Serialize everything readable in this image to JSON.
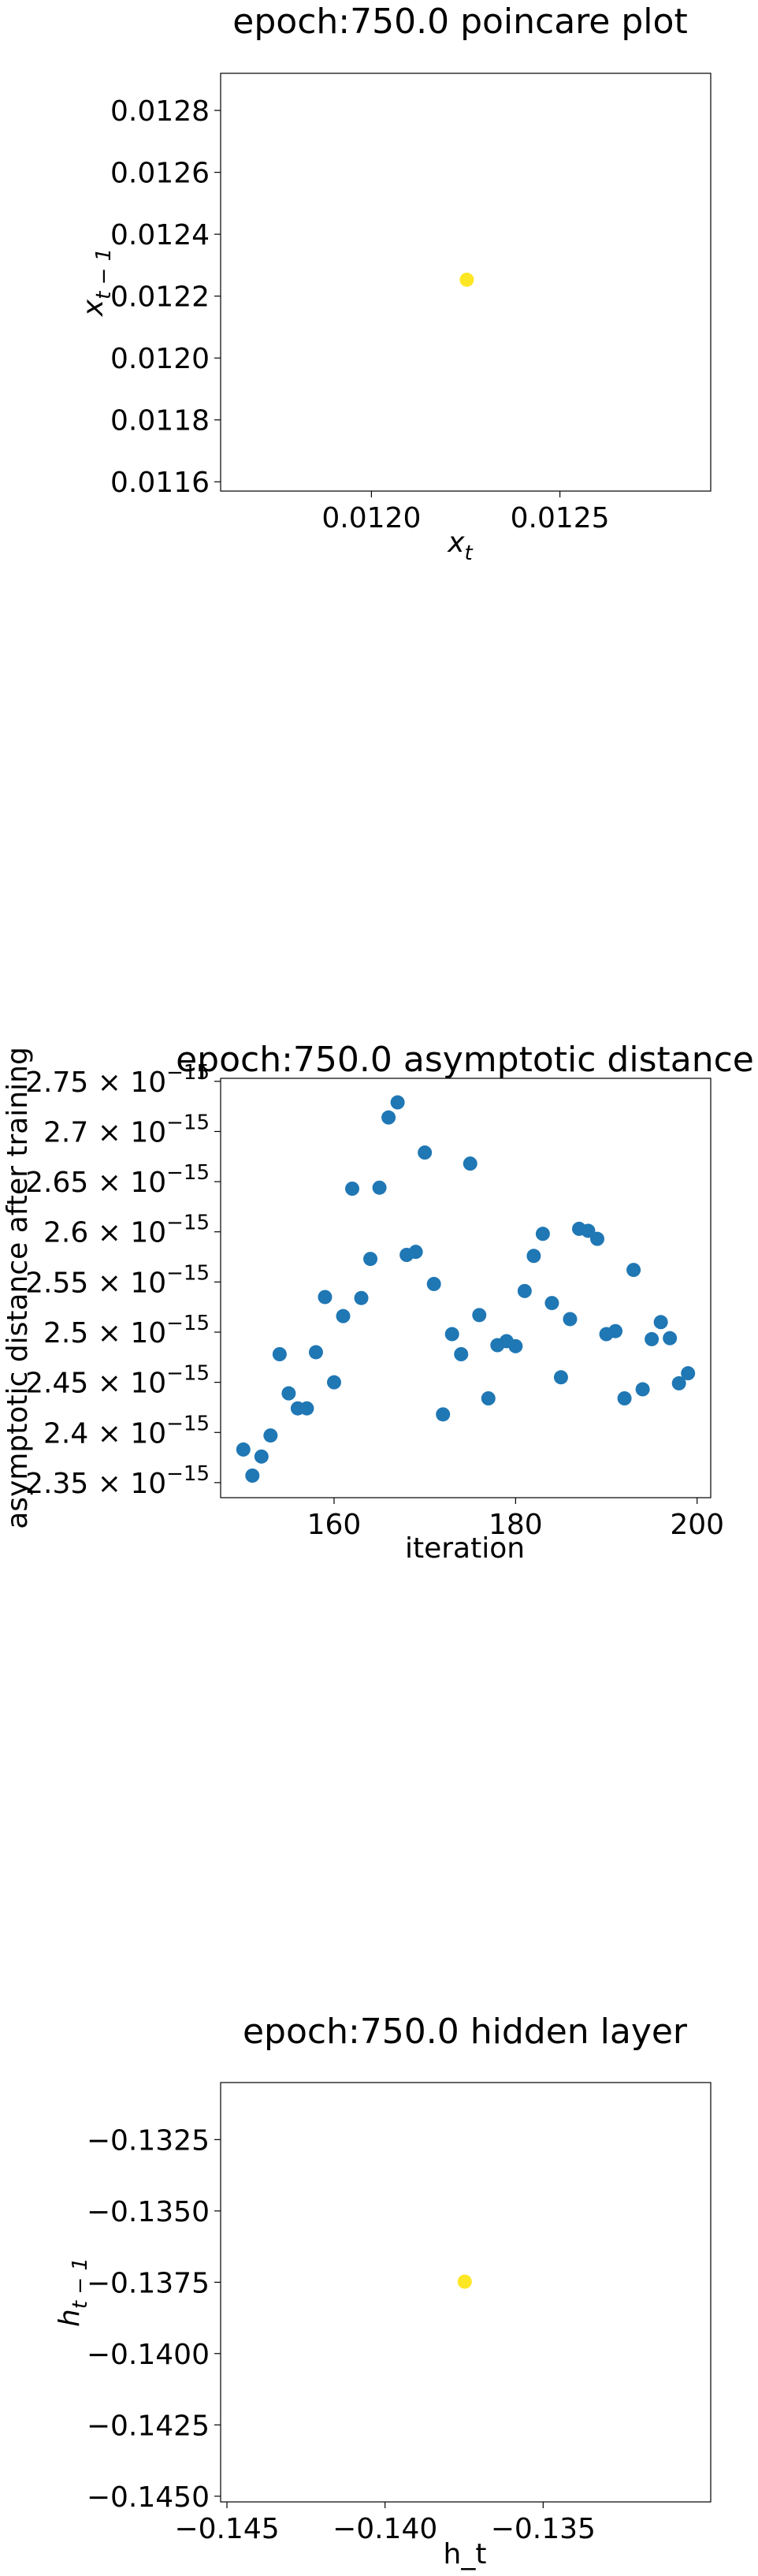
{
  "chart_data": [
    {
      "type": "scatter",
      "title": "epoch:750.0 poincare plot",
      "xlabel": "x",
      "xlabel_sub": "t",
      "ylabel": "x",
      "ylabel_sub": "t − 1",
      "xlim": [
        0.0116,
        0.0129
      ],
      "ylim": [
        0.01157,
        0.01292
      ],
      "xticks": [
        0.012,
        0.0125
      ],
      "xtick_labels": [
        "0.0120",
        "0.0125"
      ],
      "yticks": [
        0.0116,
        0.0118,
        0.012,
        0.0122,
        0.0124,
        0.0126,
        0.0128
      ],
      "ytick_labels": [
        "0.0116",
        "0.0118",
        "0.0120",
        "0.0122",
        "0.0124",
        "0.0126",
        "0.0128"
      ],
      "point_color": "#fde725",
      "points": [
        [
          0.012253,
          0.012253
        ]
      ]
    },
    {
      "type": "scatter",
      "title": "epoch:750.0 asymptotic distance",
      "xlabel": "iteration",
      "ylabel": "asymptotic distance after training",
      "xlim": [
        147.5,
        201.5
      ],
      "ylim": [
        2.335,
        2.753
      ],
      "xticks": [
        160,
        180,
        200
      ],
      "xtick_labels": [
        "160",
        "180",
        "200"
      ],
      "yticks": [
        2.35,
        2.4,
        2.45,
        2.5,
        2.55,
        2.6,
        2.65,
        2.7,
        2.75
      ],
      "ytick_mantissas": [
        "2.35",
        "2.4",
        "2.45",
        "2.5",
        "2.55",
        "2.6",
        "2.65",
        "2.7",
        "2.75"
      ],
      "ytick_times": "×",
      "ytick_base": "10",
      "ytick_exponent": "−15",
      "point_color": "#1f77b4",
      "x": [
        150,
        151,
        152,
        153,
        154,
        155,
        156,
        157,
        158,
        159,
        160,
        161,
        162,
        163,
        164,
        165,
        166,
        167,
        168,
        169,
        170,
        171,
        172,
        173,
        174,
        175,
        176,
        177,
        178,
        179,
        180,
        181,
        182,
        183,
        184,
        185,
        186,
        187,
        188,
        189,
        190,
        191,
        192,
        193,
        194,
        195,
        196,
        197,
        198,
        199
      ],
      "y": [
        2.383,
        2.357,
        2.376,
        2.397,
        2.478,
        2.439,
        2.424,
        2.424,
        2.48,
        2.535,
        2.45,
        2.516,
        2.643,
        2.534,
        2.573,
        2.644,
        2.714,
        2.729,
        2.577,
        2.58,
        2.679,
        2.548,
        2.418,
        2.498,
        2.478,
        2.668,
        2.517,
        2.434,
        2.487,
        2.491,
        2.486,
        2.541,
        2.576,
        2.598,
        2.529,
        2.455,
        2.513,
        2.603,
        2.601,
        2.593,
        2.498,
        2.501,
        2.434,
        2.562,
        2.443,
        2.493,
        2.51,
        2.494,
        2.449,
        2.459
      ]
    },
    {
      "type": "scatter",
      "title": "epoch:750.0 hidden layer",
      "xlabel": "h_t",
      "ylabel": "h",
      "ylabel_sub": "t − 1",
      "xlim": [
        -0.1452,
        -0.1297
      ],
      "ylim": [
        -0.1452,
        -0.1305
      ],
      "xticks": [
        -0.145,
        -0.14,
        -0.135
      ],
      "xtick_labels": [
        "−0.145",
        "−0.140",
        "−0.135"
      ],
      "yticks": [
        -0.145,
        -0.1425,
        -0.14,
        -0.1375,
        -0.135,
        -0.1325
      ],
      "ytick_labels": [
        "−0.1450",
        "−0.1425",
        "−0.1400",
        "−0.1375",
        "−0.1350",
        "−0.1325"
      ],
      "point_color": "#fde725",
      "points": [
        [
          -0.13748,
          -0.13748
        ]
      ]
    }
  ]
}
